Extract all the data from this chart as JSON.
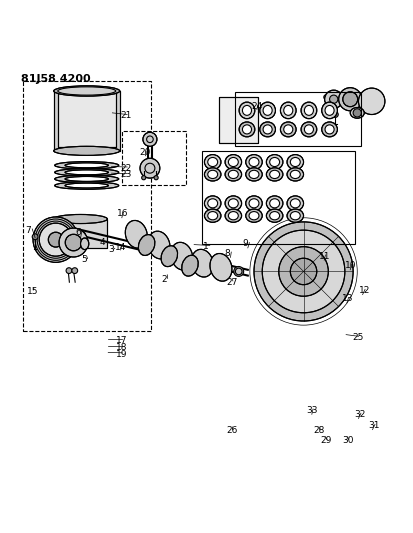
{
  "title": "81J58 4200",
  "bg_color": "#ffffff",
  "line_color": "#000000"
}
